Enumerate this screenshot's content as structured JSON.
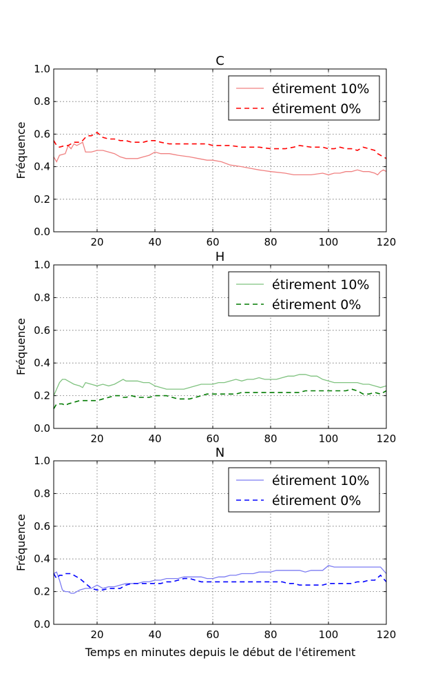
{
  "figure": {
    "xlabel": "Temps en minutes depuis le début de l'étirement"
  },
  "chart_data": [
    {
      "type": "line",
      "title": "C",
      "xlabel": "",
      "ylabel": "Fréquence",
      "xlim": [
        5,
        120
      ],
      "ylim": [
        0.0,
        1.0
      ],
      "xticks": [
        "20",
        "40",
        "60",
        "80",
        "100",
        "120"
      ],
      "yticks": [
        "0.0",
        "0.2",
        "0.4",
        "0.6",
        "0.8",
        "1.0"
      ],
      "grid": true,
      "legend_position": "top-right",
      "series": [
        {
          "name": "étirement 10%",
          "color": "#f08080",
          "style": "solid",
          "x": [
            5,
            6,
            7,
            9,
            10,
            11,
            12,
            13,
            14,
            15,
            16,
            17,
            18,
            20,
            22,
            24,
            26,
            28,
            30,
            32,
            34,
            36,
            38,
            40,
            42,
            45,
            48,
            52,
            55,
            58,
            60,
            63,
            66,
            70,
            73,
            76,
            80,
            85,
            88,
            90,
            94,
            98,
            100,
            102,
            104,
            106,
            108,
            110,
            112,
            114,
            116,
            117,
            118,
            119,
            120
          ],
          "y": [
            0.46,
            0.43,
            0.47,
            0.48,
            0.53,
            0.51,
            0.54,
            0.53,
            0.54,
            0.55,
            0.49,
            0.49,
            0.49,
            0.5,
            0.5,
            0.49,
            0.48,
            0.46,
            0.45,
            0.45,
            0.45,
            0.46,
            0.47,
            0.49,
            0.48,
            0.48,
            0.47,
            0.46,
            0.45,
            0.44,
            0.44,
            0.43,
            0.41,
            0.4,
            0.39,
            0.38,
            0.37,
            0.36,
            0.35,
            0.35,
            0.35,
            0.36,
            0.35,
            0.36,
            0.36,
            0.37,
            0.37,
            0.38,
            0.37,
            0.37,
            0.36,
            0.35,
            0.37,
            0.38,
            0.37
          ]
        },
        {
          "name": "étirement 0%",
          "color": "#ff0000",
          "style": "dashed",
          "x": [
            5,
            6,
            7,
            9,
            10,
            11,
            12,
            13,
            14,
            15,
            16,
            17,
            18,
            20,
            22,
            24,
            26,
            28,
            30,
            32,
            34,
            36,
            38,
            40,
            42,
            45,
            48,
            52,
            55,
            58,
            60,
            63,
            66,
            70,
            73,
            76,
            80,
            85,
            88,
            90,
            94,
            98,
            100,
            102,
            104,
            106,
            108,
            110,
            112,
            114,
            116,
            117,
            118,
            119,
            120
          ],
          "y": [
            0.56,
            0.53,
            0.52,
            0.53,
            0.53,
            0.54,
            0.55,
            0.55,
            0.55,
            0.56,
            0.58,
            0.59,
            0.59,
            0.61,
            0.58,
            0.57,
            0.57,
            0.56,
            0.56,
            0.55,
            0.55,
            0.55,
            0.56,
            0.56,
            0.55,
            0.54,
            0.54,
            0.54,
            0.54,
            0.54,
            0.53,
            0.53,
            0.53,
            0.52,
            0.52,
            0.52,
            0.51,
            0.51,
            0.52,
            0.53,
            0.52,
            0.52,
            0.51,
            0.51,
            0.52,
            0.51,
            0.51,
            0.5,
            0.52,
            0.51,
            0.5,
            0.48,
            0.47,
            0.46,
            0.45
          ]
        }
      ]
    },
    {
      "type": "line",
      "title": "H",
      "xlabel": "",
      "ylabel": "Fréquence",
      "xlim": [
        5,
        120
      ],
      "ylim": [
        0.0,
        1.0
      ],
      "xticks": [
        "20",
        "40",
        "60",
        "80",
        "100",
        "120"
      ],
      "yticks": [
        "0.0",
        "0.2",
        "0.4",
        "0.6",
        "0.8",
        "1.0"
      ],
      "grid": true,
      "legend_position": "top-right",
      "series": [
        {
          "name": "étirement 10%",
          "color": "#7fc27f",
          "style": "solid",
          "x": [
            5,
            6,
            7,
            8,
            9,
            10,
            12,
            14,
            15,
            16,
            18,
            20,
            22,
            24,
            26,
            28,
            29,
            30,
            32,
            34,
            36,
            38,
            40,
            42,
            44,
            46,
            48,
            50,
            52,
            54,
            56,
            58,
            60,
            62,
            64,
            66,
            68,
            70,
            72,
            74,
            76,
            78,
            80,
            82,
            84,
            86,
            88,
            90,
            92,
            94,
            96,
            98,
            100,
            102,
            104,
            106,
            108,
            110,
            112,
            114,
            116,
            118,
            120
          ],
          "y": [
            0.2,
            0.24,
            0.28,
            0.3,
            0.3,
            0.29,
            0.27,
            0.26,
            0.25,
            0.28,
            0.27,
            0.26,
            0.27,
            0.26,
            0.27,
            0.29,
            0.3,
            0.29,
            0.29,
            0.29,
            0.28,
            0.28,
            0.26,
            0.25,
            0.24,
            0.24,
            0.24,
            0.24,
            0.25,
            0.26,
            0.27,
            0.27,
            0.27,
            0.28,
            0.28,
            0.29,
            0.3,
            0.29,
            0.3,
            0.3,
            0.31,
            0.3,
            0.3,
            0.3,
            0.31,
            0.32,
            0.32,
            0.33,
            0.33,
            0.32,
            0.32,
            0.3,
            0.29,
            0.28,
            0.28,
            0.28,
            0.28,
            0.28,
            0.27,
            0.27,
            0.26,
            0.25,
            0.26
          ]
        },
        {
          "name": "étirement 0%",
          "color": "#007a00",
          "style": "dashed",
          "x": [
            5,
            6,
            7,
            8,
            9,
            10,
            12,
            14,
            15,
            16,
            18,
            20,
            22,
            24,
            26,
            28,
            29,
            30,
            32,
            34,
            36,
            38,
            40,
            42,
            44,
            46,
            48,
            50,
            52,
            54,
            56,
            58,
            60,
            62,
            64,
            66,
            68,
            70,
            72,
            74,
            76,
            78,
            80,
            82,
            84,
            86,
            88,
            90,
            92,
            94,
            96,
            98,
            100,
            102,
            104,
            106,
            108,
            110,
            112,
            114,
            116,
            118,
            120
          ],
          "y": [
            0.12,
            0.15,
            0.15,
            0.15,
            0.14,
            0.15,
            0.16,
            0.17,
            0.17,
            0.17,
            0.17,
            0.17,
            0.18,
            0.19,
            0.2,
            0.2,
            0.19,
            0.19,
            0.2,
            0.19,
            0.19,
            0.19,
            0.2,
            0.2,
            0.2,
            0.19,
            0.18,
            0.18,
            0.18,
            0.19,
            0.2,
            0.21,
            0.21,
            0.21,
            0.21,
            0.21,
            0.21,
            0.22,
            0.22,
            0.22,
            0.22,
            0.22,
            0.22,
            0.22,
            0.22,
            0.22,
            0.22,
            0.22,
            0.23,
            0.23,
            0.23,
            0.23,
            0.23,
            0.23,
            0.23,
            0.23,
            0.24,
            0.23,
            0.21,
            0.21,
            0.22,
            0.21,
            0.23
          ]
        }
      ]
    },
    {
      "type": "line",
      "title": "N",
      "xlabel": "Temps en minutes depuis le début de l'étirement",
      "ylabel": "Fréquence",
      "xlim": [
        5,
        120
      ],
      "ylim": [
        0.0,
        1.0
      ],
      "xticks": [
        "20",
        "40",
        "60",
        "80",
        "100",
        "120"
      ],
      "yticks": [
        "0.0",
        "0.2",
        "0.4",
        "0.6",
        "0.8",
        "1.0"
      ],
      "grid": true,
      "legend_position": "top-right",
      "series": [
        {
          "name": "étirement 10%",
          "color": "#7b7bf2",
          "style": "solid",
          "x": [
            5,
            6,
            7,
            8,
            9,
            10,
            11,
            12,
            14,
            16,
            18,
            20,
            22,
            24,
            26,
            28,
            30,
            32,
            34,
            36,
            38,
            40,
            42,
            44,
            46,
            48,
            50,
            52,
            54,
            56,
            58,
            60,
            62,
            64,
            66,
            68,
            70,
            72,
            74,
            76,
            78,
            80,
            82,
            84,
            86,
            88,
            90,
            92,
            94,
            96,
            98,
            100,
            102,
            104,
            106,
            108,
            110,
            112,
            114,
            116,
            118,
            120
          ],
          "y": [
            0.31,
            0.32,
            0.27,
            0.21,
            0.2,
            0.2,
            0.19,
            0.19,
            0.21,
            0.22,
            0.22,
            0.24,
            0.22,
            0.23,
            0.23,
            0.24,
            0.25,
            0.25,
            0.25,
            0.26,
            0.26,
            0.27,
            0.27,
            0.28,
            0.28,
            0.28,
            0.29,
            0.29,
            0.29,
            0.29,
            0.28,
            0.28,
            0.29,
            0.29,
            0.3,
            0.3,
            0.31,
            0.31,
            0.31,
            0.32,
            0.32,
            0.32,
            0.33,
            0.33,
            0.33,
            0.33,
            0.33,
            0.32,
            0.33,
            0.33,
            0.33,
            0.36,
            0.35,
            0.35,
            0.35,
            0.35,
            0.35,
            0.35,
            0.35,
            0.35,
            0.35,
            0.31
          ]
        },
        {
          "name": "étirement 0%",
          "color": "#0000ff",
          "style": "dashed",
          "x": [
            5,
            6,
            7,
            8,
            9,
            10,
            11,
            12,
            14,
            16,
            18,
            20,
            22,
            24,
            26,
            28,
            30,
            32,
            34,
            36,
            38,
            40,
            42,
            44,
            46,
            48,
            50,
            52,
            54,
            56,
            58,
            60,
            62,
            64,
            66,
            68,
            70,
            72,
            74,
            76,
            78,
            80,
            82,
            84,
            86,
            88,
            90,
            92,
            94,
            96,
            98,
            100,
            102,
            104,
            106,
            108,
            110,
            112,
            114,
            116,
            118,
            120
          ],
          "y": [
            0.31,
            0.28,
            0.3,
            0.3,
            0.31,
            0.31,
            0.31,
            0.3,
            0.28,
            0.25,
            0.22,
            0.21,
            0.21,
            0.22,
            0.22,
            0.22,
            0.24,
            0.25,
            0.25,
            0.25,
            0.25,
            0.25,
            0.25,
            0.26,
            0.26,
            0.27,
            0.28,
            0.28,
            0.27,
            0.26,
            0.26,
            0.26,
            0.26,
            0.26,
            0.26,
            0.26,
            0.26,
            0.26,
            0.26,
            0.26,
            0.26,
            0.26,
            0.26,
            0.26,
            0.25,
            0.25,
            0.24,
            0.24,
            0.24,
            0.24,
            0.24,
            0.25,
            0.25,
            0.25,
            0.25,
            0.25,
            0.26,
            0.26,
            0.27,
            0.27,
            0.3,
            0.26
          ]
        }
      ]
    }
  ]
}
